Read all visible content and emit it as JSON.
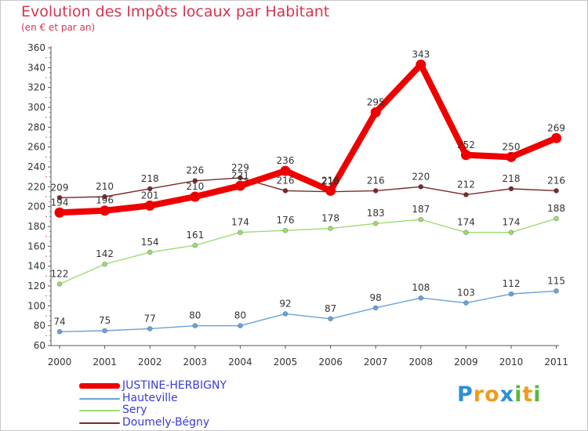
{
  "title": "Evolution des Impôts locaux par Habitant",
  "subtitle": "(en € et par an)",
  "logo": {
    "text": "Proxiti",
    "letter_colors": [
      "#2d8fd8",
      "#f29a1d",
      "#f29a1d",
      "#2d8fd8",
      "#58b93b",
      "#f29a1d",
      "#58b93b"
    ]
  },
  "chart_data": {
    "type": "line",
    "title": "Evolution des Impôts locaux par Habitant",
    "subtitle": "(en € et par an)",
    "x": [
      "2000",
      "2001",
      "2002",
      "2003",
      "2004",
      "2005",
      "2006",
      "2007",
      "2008",
      "2009",
      "2010",
      "2011"
    ],
    "ylim": [
      60,
      360
    ],
    "yticks": [
      60,
      80,
      100,
      120,
      140,
      160,
      180,
      200,
      220,
      240,
      260,
      280,
      300,
      320,
      340,
      360
    ],
    "grid": false,
    "legend": "bottom-left",
    "series": [
      {
        "name": "Doumely-Bégny",
        "color": "#7a2a2a",
        "width": "thin",
        "values": [
          209,
          210,
          218,
          226,
          229,
          216,
          215,
          216,
          220,
          212,
          218,
          216
        ],
        "labels": [
          "209",
          "210",
          "218",
          "226",
          "229",
          "216",
          "215",
          "216",
          "220",
          "212",
          "218",
          "216"
        ]
      },
      {
        "name": "Sery",
        "color": "#9cdb72",
        "width": "thin",
        "values": [
          122,
          142,
          154,
          161,
          174,
          176,
          178,
          183,
          187,
          174,
          174,
          188
        ],
        "labels": [
          "122",
          "142",
          "154",
          "161",
          "174",
          "176",
          "178",
          "183",
          "187",
          "174",
          "174",
          "188"
        ]
      },
      {
        "name": "Hauteville",
        "color": "#6aa2d8",
        "width": "thin",
        "values": [
          74,
          75,
          77,
          80,
          80,
          92,
          87,
          98,
          108,
          103,
          112,
          115
        ],
        "labels": [
          "74",
          "75",
          "77",
          "80",
          "80",
          "92",
          "87",
          "98",
          "108",
          "103",
          "112",
          "115"
        ]
      },
      {
        "name": "JUSTINE-HERBIGNY",
        "color": "#ee0000",
        "width": "thick",
        "values": [
          194,
          196,
          201,
          210,
          221,
          236,
          216,
          295,
          343,
          252,
          250,
          269
        ],
        "labels": [
          "194",
          "196",
          "201",
          "210",
          "221",
          "236",
          "216",
          "295",
          "343",
          "252",
          "250",
          "269"
        ]
      }
    ],
    "legend_order": [
      "JUSTINE-HERBIGNY",
      "Hauteville",
      "Sery",
      "Doumely-Bégny"
    ]
  }
}
